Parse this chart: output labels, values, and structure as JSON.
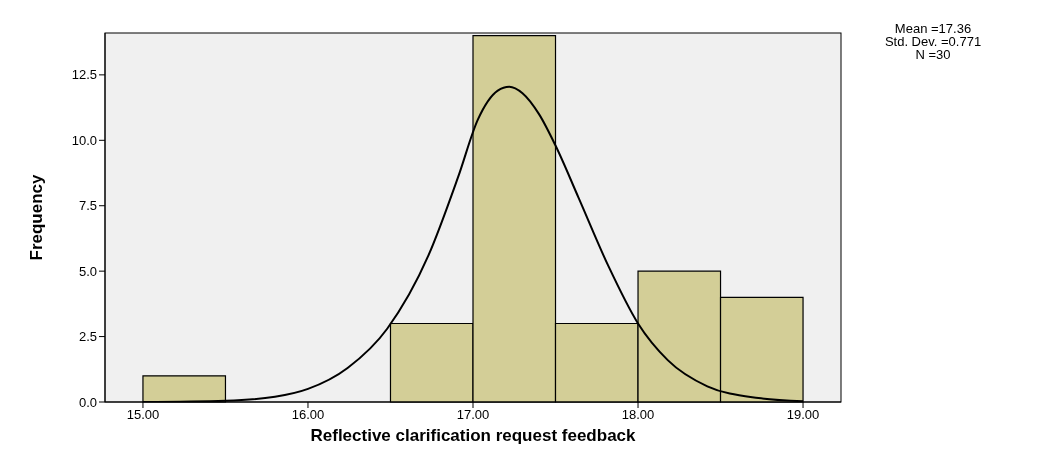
{
  "chart_data": {
    "type": "histogram",
    "xlabel": "Reflective clarification request feedback",
    "ylabel": "Frequency",
    "bins": [
      15,
      15.5,
      16,
      16.5,
      17,
      17.5,
      18,
      18.5,
      19
    ],
    "values": [
      1,
      0,
      0,
      3,
      14,
      3,
      5,
      4
    ],
    "color": "#d3ce97",
    "series": [
      {
        "type": "line",
        "color": "#000000",
        "x": [
          15.0,
          15.5,
          15.8,
          16.0,
          16.24,
          16.48,
          16.73,
          16.91,
          17.03,
          17.15,
          17.22,
          17.3,
          17.4,
          17.5,
          17.64,
          17.82,
          18.0,
          18.18,
          18.42,
          18.73,
          19.0
        ],
        "values": [
          0,
          0.05,
          0.2,
          0.5,
          1.3,
          2.8,
          5.6,
          8.6,
          10.8,
          11.9,
          12.05,
          11.8,
          11.0,
          9.8,
          7.8,
          5.2,
          3.0,
          1.6,
          0.6,
          0.15,
          0.03
        ]
      }
    ],
    "xlim": [
      14.77,
      19.23
    ],
    "ylim": [
      0,
      14.1
    ],
    "xticks": [
      {
        "value": 15,
        "label": "15.00"
      },
      {
        "value": 16,
        "label": "16.00"
      },
      {
        "value": 17,
        "label": "17.00"
      },
      {
        "value": 18,
        "label": "18.00"
      },
      {
        "value": 19,
        "label": "19.00"
      }
    ],
    "yticks": [
      {
        "value": 0,
        "label": "0.0"
      },
      {
        "value": 2.5,
        "label": "2.5"
      },
      {
        "value": 5,
        "label": "5.0"
      },
      {
        "value": 7.5,
        "label": "7.5"
      },
      {
        "value": 10,
        "label": "10.0"
      },
      {
        "value": 12.5,
        "label": "12.5"
      }
    ],
    "marker": "none",
    "line_style": "solid",
    "annotations": [
      "Mean =17.36",
      "Std. Dev. =0.771",
      "N =30"
    ]
  }
}
